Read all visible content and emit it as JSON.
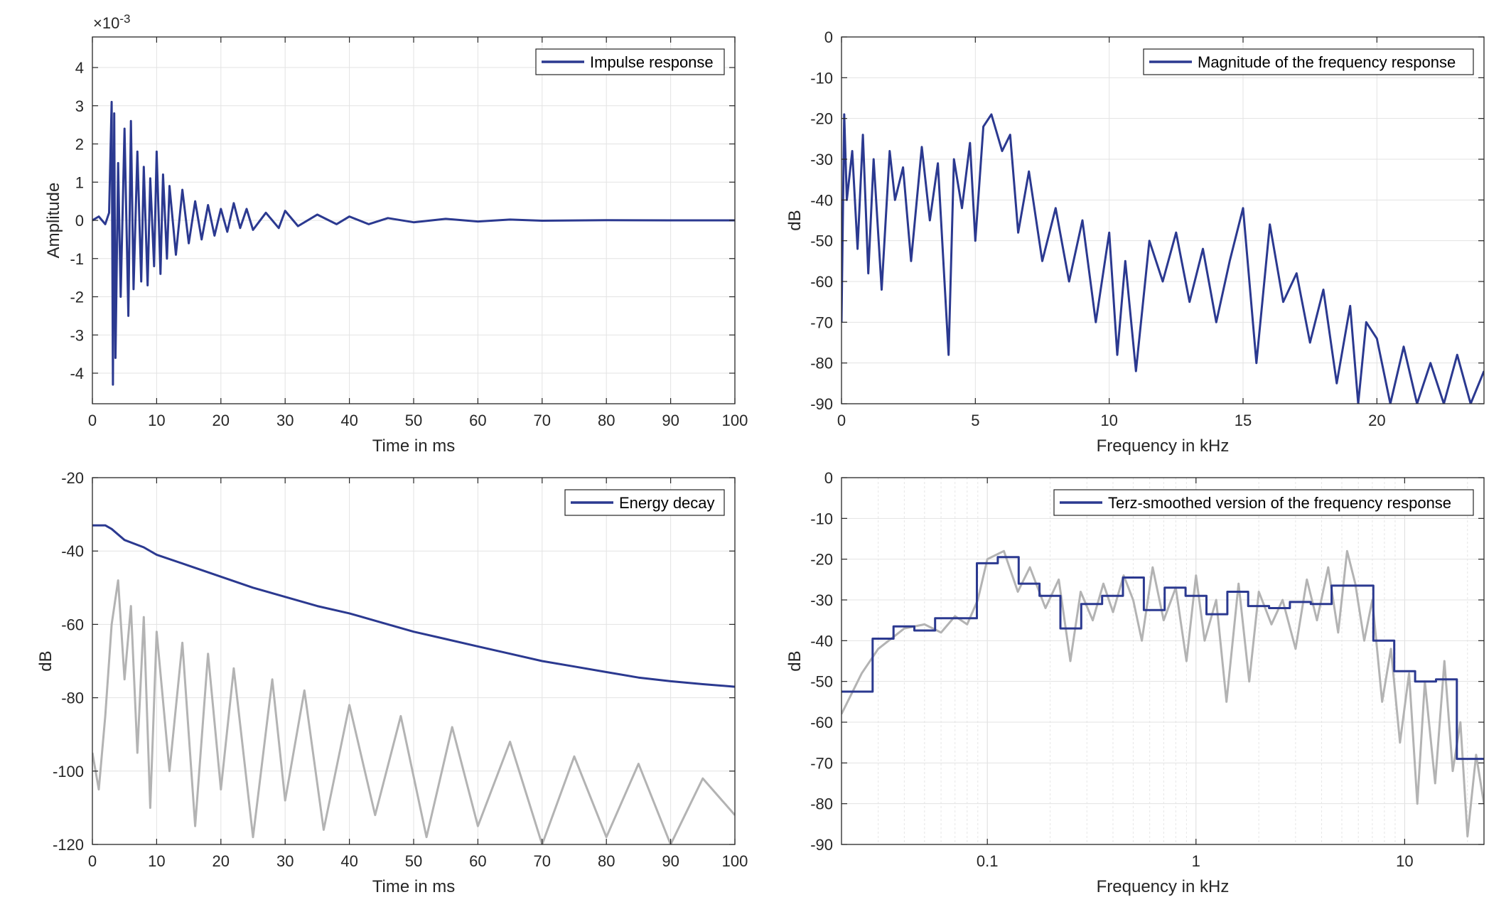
{
  "colors": {
    "series": "#2b3990",
    "gray": "#b3b3b3",
    "grid": "#e3e3e3",
    "axis": "#262626"
  },
  "chart_data": [
    {
      "type": "line",
      "id": "impulse",
      "title": "",
      "xlabel": "Time in ms",
      "ylabel": "Amplitude",
      "exponent_label": "×10",
      "exponent_sup": "-3",
      "xlim": [
        0,
        100
      ],
      "ylim": [
        -4.8,
        4.8
      ],
      "xticks": [
        0,
        10,
        20,
        30,
        40,
        50,
        60,
        70,
        80,
        90,
        100
      ],
      "yticks": [
        -4,
        -3,
        -2,
        -1,
        0,
        1,
        2,
        3,
        4
      ],
      "xscale": "linear",
      "grid": true,
      "legend": {
        "position": "top-right"
      },
      "series": [
        {
          "name": "Impulse response",
          "color": "#2b3990",
          "x": [
            0,
            1,
            2,
            2.6,
            3,
            3.2,
            3.4,
            3.6,
            4,
            4.4,
            5,
            5.6,
            6,
            6.4,
            7,
            7.6,
            8,
            8.6,
            9,
            9.6,
            10,
            10.6,
            11,
            11.6,
            12,
            13,
            14,
            15,
            16,
            17,
            18,
            19,
            20,
            21,
            22,
            23,
            24,
            25,
            27,
            29,
            30,
            32,
            35,
            38,
            40,
            43,
            46,
            50,
            55,
            60,
            65,
            70,
            80,
            90,
            100
          ],
          "y": [
            0,
            0.1,
            -0.1,
            0.2,
            3.1,
            -4.3,
            2.8,
            -3.6,
            1.5,
            -2.0,
            2.4,
            -2.5,
            2.6,
            -1.8,
            1.8,
            -1.6,
            1.4,
            -1.7,
            1.1,
            -1.2,
            1.8,
            -1.4,
            1.2,
            -1.0,
            0.9,
            -0.9,
            0.8,
            -0.6,
            0.5,
            -0.5,
            0.4,
            -0.4,
            0.3,
            -0.3,
            0.45,
            -0.2,
            0.3,
            -0.25,
            0.2,
            -0.2,
            0.25,
            -0.15,
            0.15,
            -0.1,
            0.1,
            -0.1,
            0.06,
            -0.05,
            0.04,
            -0.03,
            0.02,
            -0.01,
            0.005,
            0,
            0
          ]
        }
      ]
    },
    {
      "type": "line",
      "id": "magnitude",
      "title": "",
      "xlabel": "Frequency in kHz",
      "ylabel": "dB",
      "xlim": [
        0,
        24
      ],
      "ylim": [
        -90,
        0
      ],
      "xticks": [
        0,
        5,
        10,
        15,
        20
      ],
      "yticks": [
        0,
        -10,
        -20,
        -30,
        -40,
        -50,
        -60,
        -70,
        -80,
        -90
      ],
      "xscale": "linear",
      "grid": true,
      "legend": {
        "position": "top-right"
      },
      "series": [
        {
          "name": "Magnitude of the frequency response",
          "color": "#2b3990",
          "x": [
            0,
            0.1,
            0.2,
            0.4,
            0.6,
            0.8,
            1.0,
            1.2,
            1.5,
            1.8,
            2.0,
            2.3,
            2.6,
            3.0,
            3.3,
            3.6,
            4.0,
            4.2,
            4.5,
            4.8,
            5.0,
            5.3,
            5.6,
            6.0,
            6.3,
            6.6,
            7.0,
            7.5,
            8.0,
            8.5,
            9.0,
            9.5,
            10.0,
            10.3,
            10.6,
            11.0,
            11.5,
            12.0,
            12.5,
            13.0,
            13.5,
            14.0,
            14.5,
            15.0,
            15.5,
            16.0,
            16.5,
            17.0,
            17.5,
            18.0,
            18.5,
            19.0,
            19.3,
            19.6,
            20.0,
            20.5,
            21.0,
            21.5,
            22.0,
            22.5,
            23.0,
            23.5,
            24.0
          ],
          "y": [
            -70,
            -19,
            -40,
            -28,
            -52,
            -24,
            -58,
            -30,
            -62,
            -28,
            -40,
            -32,
            -55,
            -27,
            -45,
            -31,
            -78,
            -30,
            -42,
            -26,
            -50,
            -22,
            -19,
            -28,
            -24,
            -48,
            -33,
            -55,
            -42,
            -60,
            -45,
            -70,
            -48,
            -78,
            -55,
            -82,
            -50,
            -60,
            -48,
            -65,
            -52,
            -70,
            -55,
            -42,
            -80,
            -46,
            -65,
            -58,
            -75,
            -62,
            -85,
            -66,
            -90,
            -70,
            -74,
            -90,
            -76,
            -90,
            -80,
            -90,
            -78,
            -90,
            -82
          ]
        }
      ]
    },
    {
      "type": "line",
      "id": "decay",
      "title": "",
      "xlabel": "Time in ms",
      "ylabel": "dB",
      "xlim": [
        0,
        100
      ],
      "ylim": [
        -120,
        -20
      ],
      "xticks": [
        0,
        10,
        20,
        30,
        40,
        50,
        60,
        70,
        80,
        90,
        100
      ],
      "yticks": [
        -20,
        -40,
        -60,
        -80,
        -100,
        -120
      ],
      "xscale": "linear",
      "grid": true,
      "legend": {
        "position": "top-right"
      },
      "series": [
        {
          "name": "Energy decay",
          "color": "#2b3990",
          "x": [
            0,
            2,
            3,
            5,
            8,
            10,
            15,
            20,
            25,
            30,
            35,
            40,
            45,
            50,
            55,
            60,
            65,
            70,
            75,
            80,
            85,
            90,
            95,
            100
          ],
          "y": [
            -33,
            -33,
            -34,
            -37,
            -39,
            -41,
            -44,
            -47,
            -50,
            -52.5,
            -55,
            -57,
            -59.5,
            -62,
            -64,
            -66,
            -68,
            -70,
            -71.5,
            -73,
            -74.5,
            -75.5,
            -76.3,
            -77
          ]
        },
        {
          "color": "#b3b3b3",
          "x": [
            0,
            1,
            2,
            3,
            4,
            5,
            6,
            7,
            8,
            9,
            10,
            12,
            14,
            16,
            18,
            20,
            22,
            25,
            28,
            30,
            33,
            36,
            40,
            44,
            48,
            52,
            56,
            60,
            65,
            70,
            75,
            80,
            85,
            90,
            95,
            100
          ],
          "y": [
            -95,
            -105,
            -85,
            -60,
            -48,
            -75,
            -55,
            -95,
            -58,
            -110,
            -62,
            -100,
            -65,
            -115,
            -68,
            -105,
            -72,
            -118,
            -75,
            -108,
            -78,
            -116,
            -82,
            -112,
            -85,
            -118,
            -88,
            -115,
            -92,
            -120,
            -96,
            -118,
            -98,
            -120,
            -102,
            -112
          ]
        }
      ]
    },
    {
      "type": "line",
      "id": "terz",
      "title": "",
      "xlabel": "Frequency in kHz",
      "ylabel": "dB",
      "xlim": [
        0.02,
        24
      ],
      "ylim": [
        -90,
        0
      ],
      "xticks": [
        0.1,
        1,
        10
      ],
      "xtick_labels": [
        "0.1",
        "1",
        "10"
      ],
      "yticks": [
        0,
        -10,
        -20,
        -30,
        -40,
        -50,
        -60,
        -70,
        -80,
        -90
      ],
      "xscale": "log",
      "grid": true,
      "legend": {
        "position": "top-right"
      },
      "series": [
        {
          "name": "Terz-smoothed version of the frequency response",
          "color": "#2b3990",
          "x": [
            0.02,
            0.0282,
            0.0282,
            0.0355,
            0.0355,
            0.0447,
            0.0447,
            0.0562,
            0.0562,
            0.0891,
            0.0891,
            0.1122,
            0.1122,
            0.1413,
            0.1413,
            0.1778,
            0.1778,
            0.2239,
            0.2239,
            0.2818,
            0.2818,
            0.3548,
            0.3548,
            0.4467,
            0.4467,
            0.5623,
            0.5623,
            0.7079,
            0.7079,
            0.8913,
            0.8913,
            1.122,
            1.122,
            1.413,
            1.413,
            1.778,
            1.778,
            2.239,
            2.239,
            2.818,
            2.818,
            3.548,
            3.548,
            4.467,
            4.467,
            7.079,
            7.079,
            8.913,
            8.913,
            11.22,
            11.22,
            14.13,
            14.13,
            17.78,
            17.78,
            24
          ],
          "y": [
            -52.5,
            -52.5,
            -39.5,
            -39.5,
            -36.5,
            -36.5,
            -37.5,
            -37.5,
            -34.5,
            -34.5,
            -21,
            -21,
            -19.5,
            -19.5,
            -26,
            -26,
            -29,
            -29,
            -37,
            -37,
            -31,
            -31,
            -29,
            -29,
            -24.5,
            -24.5,
            -32.5,
            -32.5,
            -27,
            -27,
            -29,
            -29,
            -33.5,
            -33.5,
            -28,
            -28,
            -31.5,
            -31.5,
            -32,
            -32,
            -30.5,
            -30.5,
            -31,
            -31,
            -26.5,
            -26.5,
            -40,
            -40,
            -47.5,
            -47.5,
            -50,
            -50,
            -49.5,
            -49.5,
            -69,
            -69
          ]
        },
        {
          "color": "#b3b3b3",
          "x": [
            0.02,
            0.025,
            0.03,
            0.04,
            0.05,
            0.06,
            0.07,
            0.08,
            0.09,
            0.1,
            0.12,
            0.14,
            0.16,
            0.19,
            0.22,
            0.25,
            0.28,
            0.32,
            0.36,
            0.4,
            0.45,
            0.5,
            0.55,
            0.62,
            0.7,
            0.8,
            0.9,
            1.0,
            1.1,
            1.25,
            1.4,
            1.6,
            1.8,
            2.0,
            2.3,
            2.6,
            3.0,
            3.4,
            3.8,
            4.3,
            4.8,
            5.3,
            5.8,
            6.4,
            7.0,
            7.8,
            8.6,
            9.5,
            10.5,
            11.5,
            12.5,
            14,
            15.5,
            17,
            18.5,
            20,
            22,
            24
          ],
          "y": [
            -58,
            -48,
            -42,
            -37,
            -36,
            -38,
            -34,
            -36,
            -30,
            -20,
            -18,
            -28,
            -22,
            -32,
            -25,
            -45,
            -28,
            -35,
            -26,
            -33,
            -24,
            -30,
            -40,
            -22,
            -35,
            -27,
            -45,
            -24,
            -40,
            -30,
            -55,
            -26,
            -50,
            -28,
            -36,
            -30,
            -42,
            -25,
            -35,
            -22,
            -38,
            -18,
            -26,
            -40,
            -30,
            -55,
            -42,
            -65,
            -48,
            -80,
            -50,
            -75,
            -45,
            -72,
            -60,
            -88,
            -68,
            -80
          ]
        }
      ]
    }
  ]
}
